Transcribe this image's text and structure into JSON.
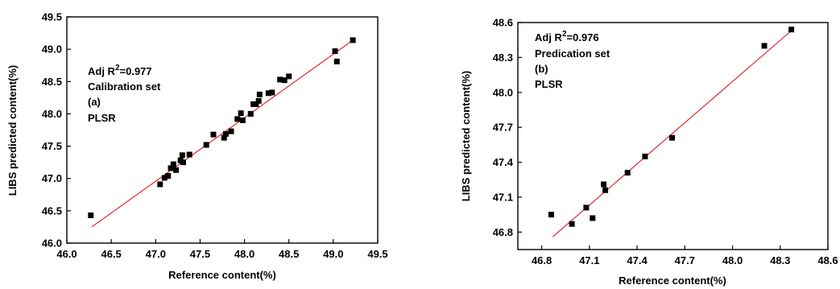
{
  "chart_data": [
    {
      "type": "scatter",
      "xlabel": "Reference content(%)",
      "ylabel": "LIBS predicted content(%)",
      "xlim": [
        46.0,
        49.5
      ],
      "ylim": [
        46.0,
        49.5
      ],
      "xticks": [
        "46.0",
        "46.5",
        "47.0",
        "47.5",
        "48.0",
        "48.5",
        "49.0",
        "49.5"
      ],
      "yticks": [
        "46.0",
        "46.5",
        "47.0",
        "47.5",
        "48.0",
        "48.5",
        "49.0",
        "49.5"
      ],
      "annotation": {
        "adj_prefix": "Adj R",
        "adj_sup": "2",
        "adj_value": "=0.977",
        "set": "Calibration set",
        "panel": "(a)",
        "method": "PLSR"
      },
      "fit_line": {
        "x": [
          46.28,
          49.22
        ],
        "y": [
          46.25,
          49.14
        ]
      },
      "points": [
        [
          46.27,
          46.43
        ],
        [
          47.05,
          46.91
        ],
        [
          47.1,
          47.01
        ],
        [
          47.14,
          47.04
        ],
        [
          47.17,
          47.16
        ],
        [
          47.2,
          47.22
        ],
        [
          47.23,
          47.13
        ],
        [
          47.28,
          47.28
        ],
        [
          47.3,
          47.36
        ],
        [
          47.31,
          47.25
        ],
        [
          47.38,
          47.37
        ],
        [
          47.57,
          47.52
        ],
        [
          47.65,
          47.68
        ],
        [
          47.77,
          47.63
        ],
        [
          47.79,
          47.69
        ],
        [
          47.85,
          47.73
        ],
        [
          47.92,
          47.92
        ],
        [
          47.96,
          48.01
        ],
        [
          47.98,
          47.9
        ],
        [
          48.07,
          48.0
        ],
        [
          48.1,
          48.15
        ],
        [
          48.13,
          48.15
        ],
        [
          48.16,
          48.2
        ],
        [
          48.17,
          48.3
        ],
        [
          48.27,
          48.32
        ],
        [
          48.31,
          48.33
        ],
        [
          48.4,
          48.53
        ],
        [
          48.45,
          48.52
        ],
        [
          48.5,
          48.58
        ],
        [
          49.02,
          48.97
        ],
        [
          49.04,
          48.81
        ],
        [
          49.22,
          49.14
        ]
      ]
    },
    {
      "type": "scatter",
      "xlabel": "Reference content(%)",
      "ylabel": "LIBS predicted content(%)",
      "xlim": [
        46.65,
        48.6
      ],
      "ylim": [
        46.65,
        48.6
      ],
      "xticks": [
        "46.8",
        "47.1",
        "47.4",
        "47.7",
        "48.0",
        "48.3",
        "48.6"
      ],
      "yticks": [
        "46.8",
        "47.1",
        "47.4",
        "47.7",
        "48.0",
        "48.3",
        "48.6"
      ],
      "annotation": {
        "adj_prefix": "Adj R",
        "adj_sup": "2",
        "adj_value": "=0.976",
        "set": "Predication set",
        "panel": "(b)",
        "method": "PLSR"
      },
      "fit_line": {
        "x": [
          46.87,
          48.37
        ],
        "y": [
          46.76,
          48.53
        ]
      },
      "points": [
        [
          46.86,
          46.95
        ],
        [
          46.99,
          46.87
        ],
        [
          47.08,
          47.01
        ],
        [
          47.12,
          46.92
        ],
        [
          47.19,
          47.21
        ],
        [
          47.2,
          47.16
        ],
        [
          47.34,
          47.31
        ],
        [
          47.45,
          47.45
        ],
        [
          47.62,
          47.61
        ],
        [
          48.2,
          48.4
        ],
        [
          48.37,
          48.54
        ]
      ]
    }
  ]
}
